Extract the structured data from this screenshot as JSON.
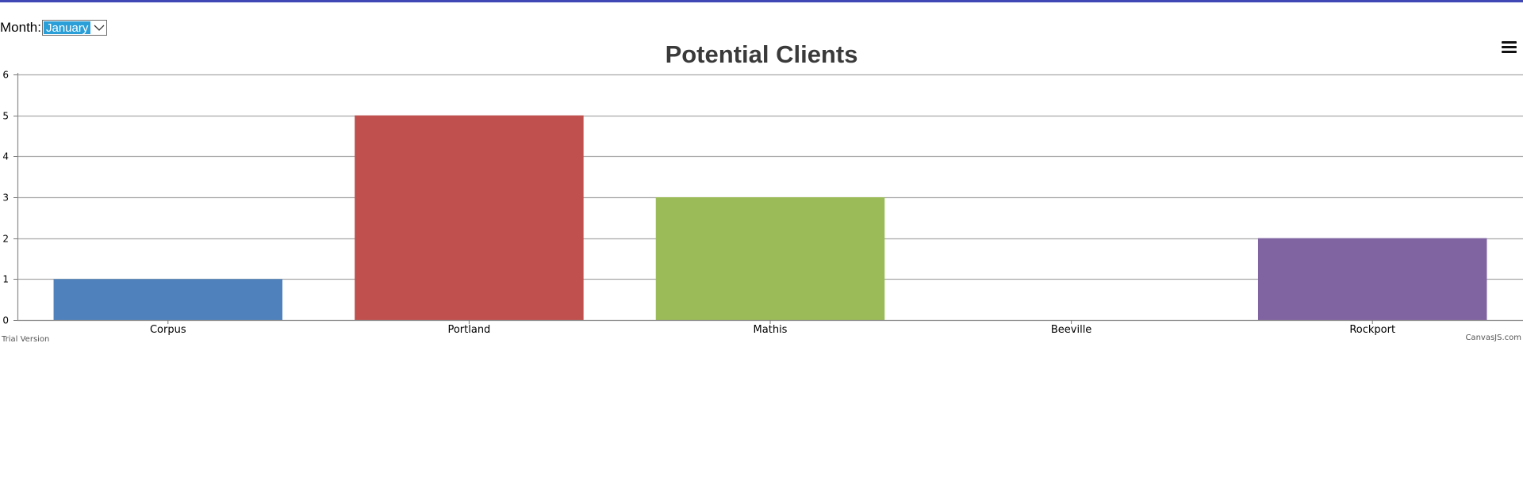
{
  "controls": {
    "month_label": "Month:",
    "month_selected": "January"
  },
  "chart_data": {
    "type": "bar",
    "title": "Potential Clients",
    "categories": [
      "Corpus",
      "Portland",
      "Mathis",
      "Beeville",
      "Rockport"
    ],
    "values": [
      1,
      5,
      3,
      0,
      2
    ],
    "colors": [
      "#4f81bc",
      "#c0504e",
      "#9bbb58",
      "#23bfaa",
      "#8064a1"
    ],
    "ylim": [
      0,
      6
    ],
    "yticks": [
      0,
      1,
      2,
      3,
      4,
      5,
      6
    ],
    "grid": true,
    "xlabel": "",
    "ylabel": ""
  },
  "footer": {
    "left_credit": "Trial Version",
    "right_credit": "CanvasJS.com"
  }
}
